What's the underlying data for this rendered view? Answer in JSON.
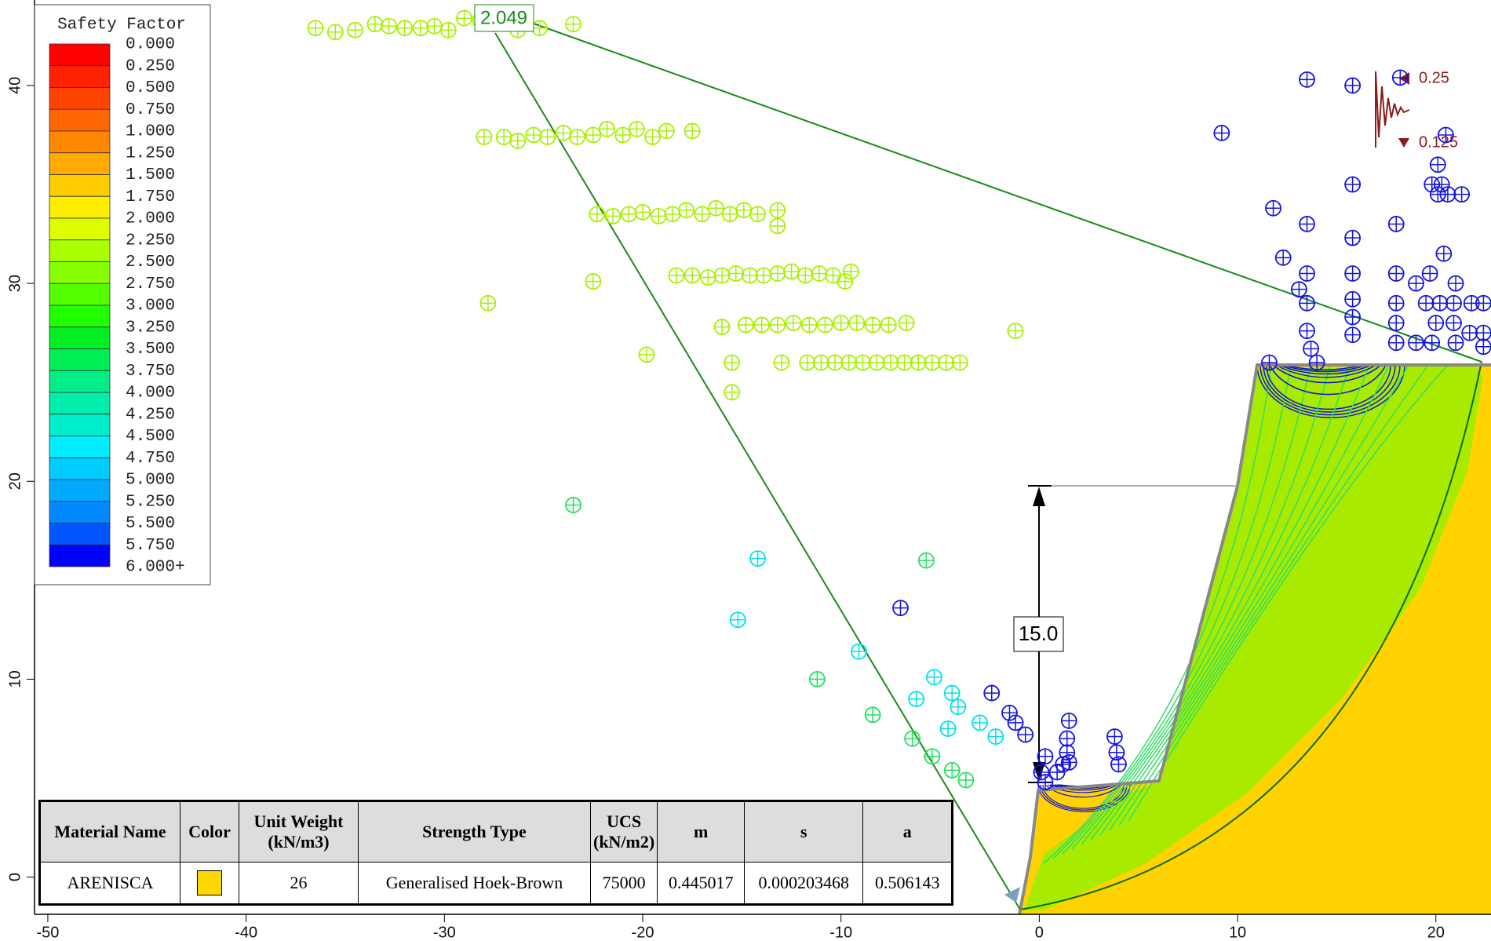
{
  "chart_data": {
    "type": "scatter",
    "xlim": [
      -50.67,
      22.78
    ],
    "ylim": [
      -1.88,
      44.32
    ],
    "xticks": [
      -50,
      -40,
      -30,
      -20,
      -10,
      0,
      10,
      20
    ],
    "yticks": [
      0,
      10,
      20,
      30,
      40
    ],
    "series": [
      {
        "color": "#a8f000",
        "x": [
          -36.5,
          -35.5,
          -34.5,
          -33.5,
          -32.8,
          -32,
          -31.2,
          -30.5,
          -29.8,
          -29,
          -28.2,
          -27.5,
          -26.3,
          -25.2,
          -23.5,
          -28,
          -27,
          -26.3,
          -25.5,
          -24.8,
          -24,
          -23.3,
          -22.5,
          -21.8,
          -21,
          -20.3,
          -19.5,
          -18.8,
          -17.5,
          -22.3,
          -21.5,
          -20.7,
          -20,
          -19.2,
          -18.5,
          -17.8,
          -17,
          -16.3,
          -15.6,
          -14.9,
          -14.2,
          -13.2,
          -13.2,
          -18.3,
          -17.5,
          -16.7,
          -16,
          -15.3,
          -14.6,
          -13.9,
          -13.2,
          -12.5,
          -11.8,
          -11.1,
          -10.4,
          -9.5,
          -9.8,
          -16,
          -14.8,
          -14,
          -13.2,
          -12.4,
          -11.6,
          -10.8,
          -10,
          -9.2,
          -8.4,
          -7.6,
          -6.7,
          -15.5,
          -13,
          -11.7,
          -11,
          -10.3,
          -9.6,
          -8.9,
          -8.2,
          -7.5,
          -6.8,
          -6.1,
          -5.4,
          -4.7,
          -4,
          -22.5,
          -27.8,
          -19.8,
          -15.5,
          -1.2
        ],
        "y": [
          42.9,
          42.7,
          42.8,
          43.1,
          43,
          42.9,
          42.9,
          43,
          42.8,
          43.4,
          43.3,
          43.1,
          42.8,
          42.9,
          43.1,
          37.4,
          37.4,
          37.2,
          37.5,
          37.4,
          37.6,
          37.4,
          37.5,
          37.8,
          37.5,
          37.8,
          37.4,
          37.7,
          37.7,
          33.5,
          33.4,
          33.5,
          33.6,
          33.4,
          33.5,
          33.7,
          33.5,
          33.8,
          33.5,
          33.7,
          33.5,
          33.7,
          32.9,
          30.4,
          30.4,
          30.3,
          30.4,
          30.5,
          30.4,
          30.4,
          30.5,
          30.6,
          30.4,
          30.5,
          30.4,
          30.6,
          30.1,
          27.8,
          27.9,
          27.9,
          27.9,
          28,
          27.9,
          27.9,
          28,
          28,
          27.9,
          27.9,
          28,
          26,
          26,
          26,
          26,
          26,
          26,
          26,
          26,
          26,
          26,
          26,
          26,
          26,
          26,
          30.1,
          29,
          26.4,
          24.5,
          27.6
        ]
      },
      {
        "color": "#22e060",
        "x": [
          -23.5,
          -11.2,
          -8.4,
          -6.4,
          -5.4,
          -4.4,
          -3.7,
          -5.7
        ],
        "y": [
          18.8,
          10,
          8.2,
          7,
          6.1,
          5.4,
          4.9,
          16
        ]
      },
      {
        "color": "#00e0f0",
        "x": [
          -14.2,
          -15.2,
          -9.1,
          -6.2,
          -5.3,
          -4.4,
          -4.1,
          -4.6,
          -3,
          -2.2
        ],
        "y": [
          16.1,
          13,
          11.4,
          9,
          10.1,
          9.3,
          8.6,
          7.5,
          7.8,
          7.1
        ]
      },
      {
        "color": "#1414e0",
        "x": [
          -7,
          -2.4,
          -1.5,
          -1.2,
          -0.7,
          0.3,
          1.5,
          1.4,
          1.4,
          1.5,
          3.8,
          3.9,
          4,
          0.9,
          1.2,
          0.1,
          0.3,
          13.5,
          15.8,
          18.2,
          9.2,
          20.5,
          11.8,
          15.8,
          13.5,
          18,
          12.3,
          13.5,
          15.8,
          15.8,
          18,
          13.1,
          13.5,
          15.8,
          15.8,
          15.8,
          13.5,
          13.7,
          14,
          18,
          18,
          18,
          19,
          19.7,
          20.4,
          21,
          19.5,
          20.2,
          20.9,
          21.8,
          22.4,
          20,
          20.9,
          21.7,
          22.4,
          22.4,
          19,
          19.8,
          21,
          20.1,
          20.3,
          20.1,
          19.8,
          20.6,
          21.3,
          11.6
        ],
        "y": [
          13.6,
          9.3,
          8.3,
          7.8,
          7.2,
          6.1,
          7.9,
          7,
          6.3,
          5.8,
          7.1,
          6.3,
          5.7,
          5.3,
          5.7,
          5.3,
          4.8,
          40.3,
          40,
          40.4,
          37.6,
          37.5,
          33.8,
          35,
          33,
          33,
          31.3,
          30.5,
          32.3,
          30.5,
          30.5,
          29.7,
          29,
          29.2,
          28.3,
          27.4,
          27.6,
          26.7,
          26,
          29,
          28,
          27,
          30,
          30.5,
          31.5,
          30,
          29,
          29,
          29,
          29,
          29,
          28,
          28,
          27.5,
          27.5,
          26.8,
          27,
          27,
          27,
          36,
          35,
          34.5,
          35,
          34.5,
          34.5,
          26
        ]
      }
    ],
    "legend": {
      "title": "Safety Factor",
      "labels": [
        "0.000",
        "0.250",
        "0.500",
        "0.750",
        "1.000",
        "1.250",
        "1.500",
        "1.750",
        "2.000",
        "2.250",
        "2.500",
        "2.750",
        "3.000",
        "3.250",
        "3.500",
        "3.750",
        "4.000",
        "4.250",
        "4.500",
        "4.750",
        "5.000",
        "5.250",
        "5.500",
        "5.750",
        "6.000+"
      ],
      "colors": [
        "#ff0000",
        "#ff2200",
        "#ff4400",
        "#ff6600",
        "#ff8800",
        "#ffaa00",
        "#ffcc00",
        "#ffee00",
        "#ddff00",
        "#aaff00",
        "#88ff00",
        "#55ff00",
        "#22ff00",
        "#00ee22",
        "#00ee55",
        "#00ee88",
        "#00eeaa",
        "#00eecc",
        "#00eeff",
        "#00ccff",
        "#00aaff",
        "#0088ff",
        "#0055ff",
        "#0000ff"
      ]
    },
    "annotations": {
      "min_fs": "2.049",
      "height": "15.0",
      "seismic_h": "0.25",
      "seismic_v": "0.125"
    }
  },
  "material_table": {
    "headers": [
      "Material Name",
      "Color",
      "Unit Weight\n(kN/m3)",
      "Strength Type",
      "UCS\n(kN/m2)",
      "m",
      "s",
      "a"
    ],
    "row": [
      "ARENISCA",
      "#ffd700",
      26,
      "Generalised Hoek-Brown",
      75000,
      0.445017,
      0.000203468,
      0.506143
    ]
  }
}
